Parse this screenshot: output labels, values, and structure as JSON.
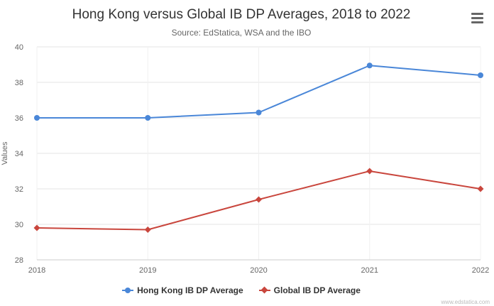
{
  "header": {
    "menu_icon": "hamburger-menu-icon"
  },
  "footer": {
    "watermark": "www.edstatica.com"
  },
  "chart_data": {
    "type": "line",
    "title": "Hong Kong versus Global IB DP Averages, 2018 to 2022",
    "subtitle": "Source: EdStatica, WSA and the IBO",
    "xlabel": "",
    "ylabel": "Values",
    "categories": [
      "2018",
      "2019",
      "2020",
      "2021",
      "2022"
    ],
    "ylim": [
      28,
      40
    ],
    "yticks": [
      28,
      30,
      32,
      34,
      36,
      38,
      40
    ],
    "grid": true,
    "legend_position": "bottom",
    "series": [
      {
        "name": "Hong Kong IB DP Average",
        "values": [
          36.0,
          36.0,
          36.3,
          38.95,
          38.4
        ],
        "color": "#4a87d8",
        "marker": "circle"
      },
      {
        "name": "Global IB DP Average",
        "values": [
          29.8,
          29.7,
          31.4,
          33.0,
          32.0
        ],
        "color": "#c9463d",
        "marker": "diamond"
      }
    ]
  }
}
